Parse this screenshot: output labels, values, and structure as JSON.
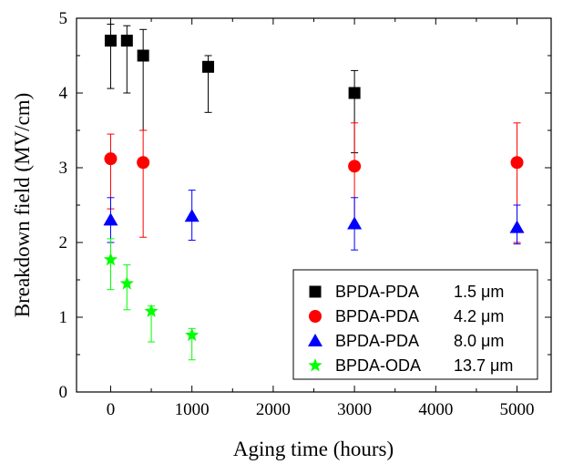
{
  "chart_data": {
    "type": "scatter",
    "xlabel": "Aging time (hours)",
    "ylabel": "Breakdown field (MV/cm)",
    "xlim": [
      -420,
      5420
    ],
    "ylim": [
      0,
      5
    ],
    "x_ticks": [
      0,
      1000,
      2000,
      3000,
      4000,
      5000
    ],
    "y_ticks": [
      0,
      1,
      2,
      3,
      4,
      5
    ],
    "legend_position": "bottom-right",
    "grid": false,
    "series": [
      {
        "name": "BPDA-PDA",
        "thickness": "1.5 μm",
        "marker": "square",
        "color": "#000000",
        "points": [
          {
            "x": 0,
            "y": 4.7,
            "err_low": 4.06,
            "err_high": 4.92
          },
          {
            "x": 200,
            "y": 4.7,
            "err_low": 4.0,
            "err_high": 4.9
          },
          {
            "x": 400,
            "y": 4.5,
            "err_low": 3.5,
            "err_high": 4.85
          },
          {
            "x": 1200,
            "y": 4.35,
            "err_low": 3.74,
            "err_high": 4.5
          },
          {
            "x": 3000,
            "y": 4.0,
            "err_low": 3.2,
            "err_high": 4.3
          }
        ]
      },
      {
        "name": "BPDA-PDA",
        "thickness": "4.2 μm",
        "marker": "circle",
        "color": "#ff0000",
        "points": [
          {
            "x": 0,
            "y": 3.12,
            "err_low": 2.45,
            "err_high": 3.45
          },
          {
            "x": 400,
            "y": 3.07,
            "err_low": 2.07,
            "err_high": 3.5
          },
          {
            "x": 3000,
            "y": 3.02,
            "err_low": 2.25,
            "err_high": 3.6
          },
          {
            "x": 5000,
            "y": 3.07,
            "err_low": 2.0,
            "err_high": 3.6
          }
        ]
      },
      {
        "name": "BPDA-PDA",
        "thickness": "8.0 μm",
        "marker": "triangle",
        "color": "#0000ff",
        "points": [
          {
            "x": 0,
            "y": 2.3,
            "err_low": 2.0,
            "err_high": 2.6
          },
          {
            "x": 1000,
            "y": 2.35,
            "err_low": 2.03,
            "err_high": 2.7
          },
          {
            "x": 3000,
            "y": 2.25,
            "err_low": 1.9,
            "err_high": 2.6
          },
          {
            "x": 5000,
            "y": 2.2,
            "err_low": 1.98,
            "err_high": 2.5
          }
        ]
      },
      {
        "name": "BPDA-ODA",
        "thickness": "13.7 μm",
        "marker": "star",
        "color": "#00ff00",
        "points": [
          {
            "x": 0,
            "y": 1.77,
            "err_low": 1.37,
            "err_high": 2.05
          },
          {
            "x": 200,
            "y": 1.45,
            "err_low": 1.1,
            "err_high": 1.7
          },
          {
            "x": 500,
            "y": 1.08,
            "err_low": 0.67,
            "err_high": 1.15
          },
          {
            "x": 1000,
            "y": 0.76,
            "err_low": 0.43,
            "err_high": 0.85
          }
        ]
      }
    ]
  }
}
